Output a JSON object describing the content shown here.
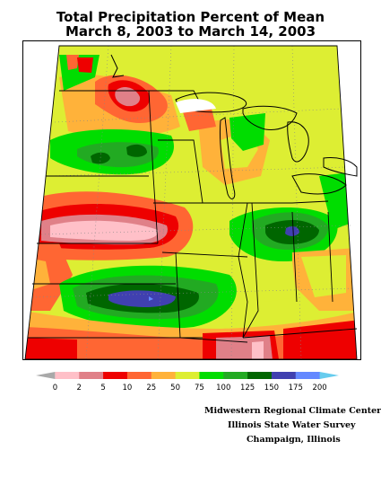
{
  "title": {
    "line1": "Total Precipitation Percent of Mean",
    "line2": "March 8, 2003 to March 14, 2003"
  },
  "legend": {
    "labels": [
      "0",
      "2",
      "5",
      "10",
      "25",
      "50",
      "75",
      "100",
      "125",
      "150",
      "175",
      "200"
    ],
    "colors": [
      "#a9a9a9",
      "#ffc0c8",
      "#e08088",
      "#ee0000",
      "#ff6633",
      "#ffb23a",
      "#ddee33",
      "#00dd00",
      "#22aa22",
      "#006600",
      "#4040b0",
      "#6488ff",
      "#66ccee"
    ]
  },
  "credits": {
    "line1": "Midwestern Regional Climate Center",
    "line2": "Illinois State Water Survey",
    "line3": "Champaign, Illinois"
  },
  "palette": {
    "ocean_outline": "#000000",
    "state_lines": "#000000",
    "graticule": "#888888"
  }
}
